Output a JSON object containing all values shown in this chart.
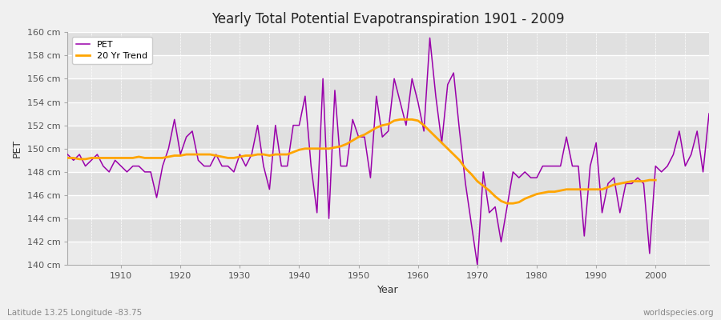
{
  "title": "Yearly Total Potential Evapotranspiration 1901 - 2009",
  "xlabel": "Year",
  "ylabel": "PET",
  "subtitle_left": "Latitude 13.25 Longitude -83.75",
  "subtitle_right": "worldspecies.org",
  "ylim": [
    140,
    160
  ],
  "xlim": [
    1901,
    2009
  ],
  "ytick_step": 2,
  "pet_color": "#9900AA",
  "trend_color": "#FFA500",
  "fig_bg_color": "#F0F0F0",
  "plot_bg_color": "#F5F5F5",
  "band_color_light": "#EBEBEB",
  "band_color_dark": "#E0E0E0",
  "years": [
    1901,
    1902,
    1903,
    1904,
    1905,
    1906,
    1907,
    1908,
    1909,
    1910,
    1911,
    1912,
    1913,
    1914,
    1915,
    1916,
    1917,
    1918,
    1919,
    1920,
    1921,
    1922,
    1923,
    1924,
    1925,
    1926,
    1927,
    1928,
    1929,
    1930,
    1931,
    1932,
    1933,
    1934,
    1935,
    1936,
    1937,
    1938,
    1939,
    1940,
    1941,
    1942,
    1943,
    1944,
    1945,
    1946,
    1947,
    1948,
    1949,
    1950,
    1951,
    1952,
    1953,
    1954,
    1955,
    1956,
    1957,
    1958,
    1959,
    1960,
    1961,
    1962,
    1963,
    1964,
    1965,
    1966,
    1967,
    1968,
    1969,
    1970,
    1971,
    1972,
    1973,
    1974,
    1975,
    1976,
    1977,
    1978,
    1979,
    1980,
    1981,
    1982,
    1983,
    1984,
    1985,
    1986,
    1987,
    1988,
    1989,
    1990,
    1991,
    1992,
    1993,
    1994,
    1995,
    1996,
    1997,
    1998,
    1999,
    2000,
    2001,
    2002,
    2003,
    2004,
    2005,
    2006,
    2007,
    2008,
    2009
  ],
  "pet_values": [
    149.5,
    149.0,
    149.5,
    148.5,
    149.0,
    149.5,
    148.5,
    148.0,
    149.0,
    148.5,
    148.0,
    148.5,
    148.5,
    148.0,
    148.0,
    145.8,
    148.5,
    150.0,
    152.5,
    149.5,
    151.0,
    151.5,
    149.0,
    148.5,
    148.5,
    149.5,
    148.5,
    148.5,
    148.0,
    149.5,
    148.5,
    149.5,
    152.0,
    148.5,
    146.5,
    152.0,
    148.5,
    148.5,
    152.0,
    152.0,
    154.5,
    148.5,
    144.5,
    156.0,
    144.0,
    155.0,
    148.5,
    148.5,
    152.5,
    151.0,
    151.0,
    147.5,
    154.5,
    151.0,
    151.5,
    156.0,
    154.0,
    152.0,
    156.0,
    154.0,
    151.5,
    159.5,
    154.5,
    150.5,
    155.5,
    156.5,
    151.5,
    147.0,
    143.5,
    140.0,
    148.0,
    144.5,
    145.0,
    142.0,
    145.0,
    148.0,
    147.5,
    148.0,
    147.5,
    147.5,
    148.5,
    148.5,
    148.5,
    148.5,
    151.0,
    148.5,
    148.5,
    142.5,
    148.5,
    150.5,
    144.5,
    147.0,
    147.5,
    144.5,
    147.0,
    147.0,
    147.5,
    147.0,
    141.0,
    148.5,
    148.0,
    148.5,
    149.5,
    151.5,
    148.5,
    149.5,
    151.5,
    148.0,
    153.0
  ],
  "trend_values": [
    149.2,
    149.2,
    149.1,
    149.1,
    149.2,
    149.2,
    149.2,
    149.2,
    149.2,
    149.2,
    149.2,
    149.2,
    149.3,
    149.2,
    149.2,
    149.2,
    149.2,
    149.3,
    149.4,
    149.4,
    149.5,
    149.5,
    149.5,
    149.5,
    149.5,
    149.4,
    149.3,
    149.2,
    149.2,
    149.3,
    149.4,
    149.4,
    149.5,
    149.5,
    149.4,
    149.5,
    149.5,
    149.5,
    149.7,
    149.9,
    150.0,
    150.0,
    150.0,
    150.0,
    150.0,
    150.1,
    150.2,
    150.4,
    150.7,
    151.0,
    151.2,
    151.5,
    151.8,
    152.0,
    152.1,
    152.4,
    152.5,
    152.5,
    152.5,
    152.4,
    152.0,
    151.5,
    151.0,
    150.5,
    150.0,
    149.5,
    149.0,
    148.3,
    147.8,
    147.2,
    146.8,
    146.4,
    145.9,
    145.5,
    145.3,
    145.3,
    145.4,
    145.7,
    145.9,
    146.1,
    146.2,
    146.3,
    146.3,
    146.4,
    146.5,
    146.5,
    146.5,
    146.5,
    146.5,
    146.5,
    146.5,
    146.7,
    146.9,
    147.0,
    147.1,
    147.2,
    147.2,
    147.2,
    147.3,
    147.3
  ]
}
